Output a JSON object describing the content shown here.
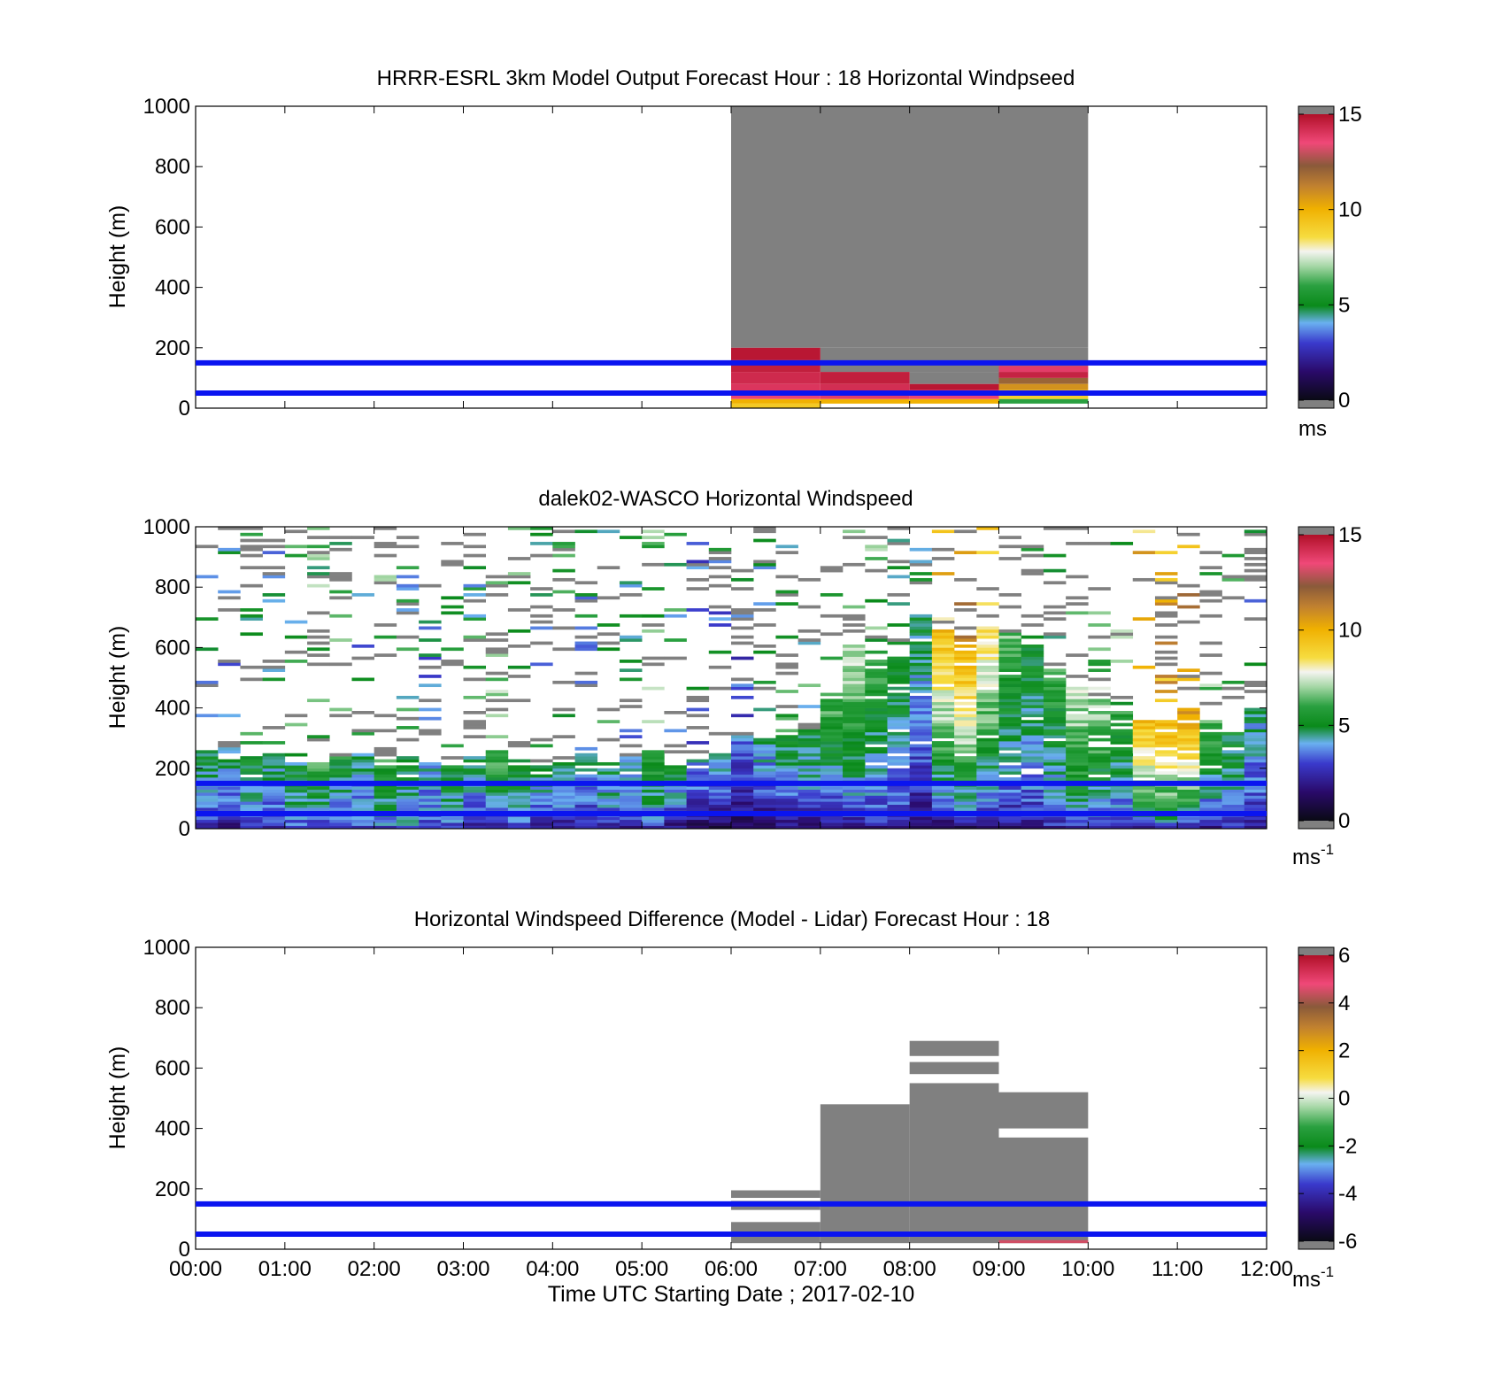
{
  "chart_data": [
    {
      "type": "heatmap",
      "title": "HRRR-ESRL 3km Model Output   Forecast Hour : 18 Horizontal Windpseed",
      "ylabel": "Height (m)",
      "xlabel": "",
      "ylim": [
        0,
        1000
      ],
      "xlim_hours": [
        0,
        12
      ],
      "yticks": [
        "0",
        "200",
        "400",
        "600",
        "800",
        "1000"
      ],
      "xticks": [],
      "colorbar": {
        "min": 0,
        "max": 15,
        "ticks": [
          "0",
          "5",
          "10",
          "15"
        ],
        "unit": "ms",
        "unit_sup": ""
      },
      "reference_lines_m": [
        50,
        150
      ],
      "blocks": [
        {
          "t0": 6,
          "t1": 10,
          "z0": 200,
          "z1": 1000,
          "v": "gray"
        },
        {
          "t0": 7,
          "t1": 10,
          "z0": 120,
          "z1": 200,
          "v": "gray"
        },
        {
          "t0": 8,
          "t1": 9,
          "z0": 80,
          "z1": 120,
          "v": "gray"
        },
        {
          "t0": 6,
          "t1": 7,
          "z0": 160,
          "z1": 200,
          "v": 14.8
        },
        {
          "t0": 6,
          "t1": 7,
          "z0": 120,
          "z1": 160,
          "v": 14.6
        },
        {
          "t0": 6,
          "t1": 7,
          "z0": 80,
          "z1": 120,
          "v": 14.3
        },
        {
          "t0": 6,
          "t1": 7,
          "z0": 50,
          "z1": 80,
          "v": 14.0
        },
        {
          "t0": 6,
          "t1": 7,
          "z0": 30,
          "z1": 50,
          "v": 13.6
        },
        {
          "t0": 6,
          "t1": 7,
          "z0": 15,
          "z1": 30,
          "v": 10.0
        },
        {
          "t0": 6,
          "t1": 7,
          "z0": 0,
          "z1": 15,
          "v": 9.2
        },
        {
          "t0": 7,
          "t1": 8,
          "z0": 80,
          "z1": 120,
          "v": 14.6
        },
        {
          "t0": 7,
          "t1": 8,
          "z0": 50,
          "z1": 80,
          "v": 14.2
        },
        {
          "t0": 7,
          "t1": 8,
          "z0": 30,
          "z1": 50,
          "v": 13.8
        },
        {
          "t0": 7,
          "t1": 8,
          "z0": 15,
          "z1": 30,
          "v": 10.0
        },
        {
          "t0": 8,
          "t1": 9,
          "z0": 60,
          "z1": 80,
          "v": 14.8
        },
        {
          "t0": 8,
          "t1": 9,
          "z0": 30,
          "z1": 60,
          "v": 13.6
        },
        {
          "t0": 8,
          "t1": 9,
          "z0": 15,
          "z1": 30,
          "v": 10.0
        },
        {
          "t0": 9,
          "t1": 10,
          "z0": 120,
          "z1": 140,
          "v": 13.8
        },
        {
          "t0": 9,
          "t1": 10,
          "z0": 100,
          "z1": 120,
          "v": 14.5
        },
        {
          "t0": 9,
          "t1": 10,
          "z0": 80,
          "z1": 100,
          "v": 12.0
        },
        {
          "t0": 9,
          "t1": 10,
          "z0": 60,
          "z1": 80,
          "v": 10.8
        },
        {
          "t0": 9,
          "t1": 10,
          "z0": 30,
          "z1": 60,
          "v": 9.0
        },
        {
          "t0": 9,
          "t1": 10,
          "z0": 15,
          "z1": 30,
          "v": 6.0
        }
      ]
    },
    {
      "type": "heatmap",
      "title": "dalek02-WASCO  Horizontal Windspeed",
      "ylabel": "Height (m)",
      "xlabel": "",
      "ylim": [
        0,
        1000
      ],
      "xlim_hours": [
        0,
        12
      ],
      "yticks": [
        "0",
        "200",
        "400",
        "600",
        "800",
        "1000"
      ],
      "xticks": [],
      "colorbar": {
        "min": 0,
        "max": 15,
        "ticks": [
          "0",
          "5",
          "10",
          "15"
        ],
        "unit": "ms",
        "unit_sup": "-1"
      },
      "reference_lines_m": [
        50,
        150
      ],
      "profiles": {
        "time_step_hours": 0.25,
        "surface_speed": [
          2.0,
          1.8,
          2.2,
          2.5,
          3.0,
          2.6,
          2.4,
          2.8,
          3.2,
          3.5,
          2.9,
          2.6,
          2.0,
          2.3,
          2.7,
          2.1,
          1.5,
          1.8,
          2.2,
          2.0,
          2.5,
          1.6,
          1.2,
          1.0,
          0.8,
          1.0,
          1.2,
          1.5,
          1.4,
          1.8,
          2.1,
          2.0,
          1.2,
          1.0,
          1.2,
          1.4,
          1.6,
          2.0,
          2.4,
          2.8,
          2.6,
          2.2,
          2.5,
          2.8,
          2.0,
          2.2,
          2.4,
          2.0
        ],
        "upper_speed": [
          5.0,
          4.5,
          5.5,
          4.8,
          5.2,
          6.0,
          5.5,
          4.6,
          5.8,
          5.0,
          4.2,
          5.6,
          5.0,
          6.2,
          5.4,
          4.8,
          5.2,
          4.6,
          5.0,
          4.2,
          6.0,
          5.0,
          4.0,
          4.2,
          3.5,
          4.5,
          5.0,
          5.2,
          6.5,
          7.5,
          6.0,
          5.5,
          5.0,
          9.5,
          10.5,
          8.5,
          6.5,
          5.5,
          6.0,
          7.5,
          7.0,
          6.0,
          9.5,
          10.0,
          10.8,
          6.0,
          5.2,
          4.5
        ],
        "echo_top_m": [
          250,
          220,
          230,
          240,
          200,
          210,
          230,
          250,
          220,
          230,
          210,
          200,
          230,
          250,
          220,
          200,
          220,
          240,
          210,
          230,
          250,
          200,
          210,
          240,
          300,
          300,
          300,
          320,
          450,
          600,
          560,
          560,
          700,
          650,
          620,
          660,
          640,
          600,
          520,
          460,
          420,
          380,
          350,
          350,
          390,
          350,
          300,
          380
        ]
      }
    },
    {
      "type": "heatmap",
      "title": "Horizontal Windspeed Difference (Model - Lidar) Forecast Hour : 18",
      "ylabel": "Height (m)",
      "xlabel": "Time UTC  Starting Date ; 2017-02-10",
      "ylim": [
        0,
        1000
      ],
      "xlim_hours": [
        0,
        12
      ],
      "yticks": [
        "0",
        "200",
        "400",
        "600",
        "800",
        "1000"
      ],
      "xticks": [
        "00:00",
        "01:00",
        "02:00",
        "03:00",
        "04:00",
        "05:00",
        "06:00",
        "07:00",
        "08:00",
        "09:00",
        "10:00",
        "11:00",
        "12:00"
      ],
      "colorbar": {
        "min": -6,
        "max": 6,
        "ticks": [
          "-6",
          "-4",
          "-2",
          "0",
          "2",
          "4",
          "6"
        ],
        "unit": "ms",
        "unit_sup": "-1"
      },
      "reference_lines_m": [
        50,
        150
      ],
      "blocks": [
        {
          "t0": 6,
          "t1": 7,
          "z0": 170,
          "z1": 195,
          "v": "gray"
        },
        {
          "t0": 6,
          "t1": 7,
          "z0": 130,
          "z1": 160,
          "v": "gray"
        },
        {
          "t0": 6,
          "t1": 7,
          "z0": 20,
          "z1": 90,
          "v": "gray"
        },
        {
          "t0": 7,
          "t1": 8,
          "z0": 20,
          "z1": 480,
          "v": "gray"
        },
        {
          "t0": 8,
          "t1": 9,
          "z0": 20,
          "z1": 550,
          "v": "gray"
        },
        {
          "t0": 8,
          "t1": 9,
          "z0": 580,
          "z1": 620,
          "v": "gray"
        },
        {
          "t0": 8,
          "t1": 9,
          "z0": 640,
          "z1": 690,
          "v": "gray"
        },
        {
          "t0": 9,
          "t1": 10,
          "z0": 20,
          "z1": 370,
          "v": "gray"
        },
        {
          "t0": 9,
          "t1": 10,
          "z0": 400,
          "z1": 520,
          "v": "gray"
        },
        {
          "t0": 9,
          "t1": 10,
          "z0": 20,
          "z1": 30,
          "v": 4.5
        }
      ]
    }
  ]
}
